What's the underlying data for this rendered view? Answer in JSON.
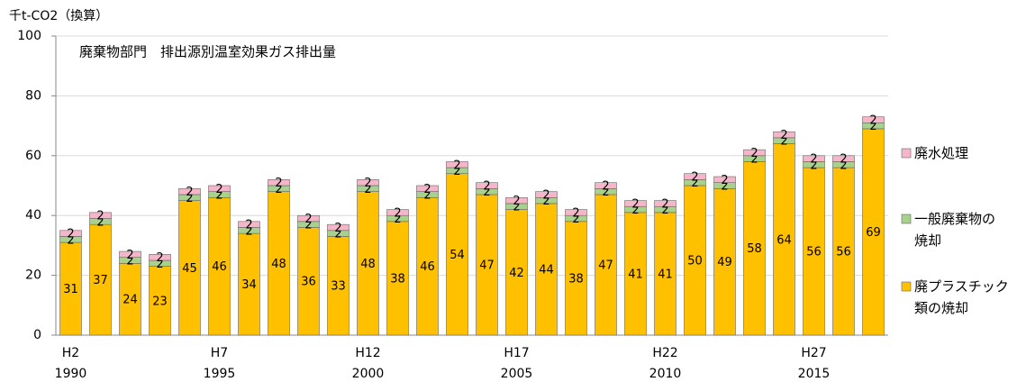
{
  "chart_data": {
    "type": "stacked_bar",
    "title": "廃棄物部門　排出源別温室効果ガス排出量",
    "y_axis_label": "千t-CO2（換算）",
    "categories": [
      [
        "H2",
        "1990"
      ],
      null,
      null,
      null,
      null,
      [
        "H7",
        "1995"
      ],
      null,
      null,
      null,
      null,
      [
        "H12",
        "2000"
      ],
      null,
      null,
      null,
      null,
      [
        "H17",
        "2005"
      ],
      null,
      null,
      null,
      null,
      [
        "H22",
        "2010"
      ],
      null,
      null,
      null,
      null,
      [
        "H27",
        "2015"
      ],
      null,
      null
    ],
    "series": [
      {
        "name": "廃プラスチック\n類の焼却",
        "color": "#ffc000",
        "values": [
          31,
          37,
          24,
          23,
          45,
          46,
          34,
          48,
          36,
          33,
          48,
          38,
          46,
          54,
          47,
          42,
          44,
          38,
          47,
          41,
          41,
          50,
          49,
          58,
          64,
          56,
          56,
          69
        ]
      },
      {
        "name": "一般廃棄物の\n焼却",
        "color": "#a9d18e",
        "values": [
          2,
          2,
          2,
          2,
          2,
          2,
          2,
          2,
          2,
          2,
          2,
          2,
          2,
          2,
          2,
          2,
          2,
          2,
          2,
          2,
          2,
          2,
          2,
          2,
          2,
          2,
          2,
          2
        ]
      },
      {
        "name": "廃水処理",
        "color": "#f4b6c8",
        "values": [
          2,
          2,
          2,
          2,
          2,
          2,
          2,
          2,
          2,
          2,
          2,
          2,
          2,
          2,
          2,
          2,
          2,
          2,
          2,
          2,
          2,
          2,
          2,
          2,
          2,
          2,
          2,
          2
        ]
      }
    ],
    "ylim": [
      0,
      100
    ],
    "yticks": [
      0,
      20,
      40,
      60,
      80,
      100
    ],
    "grid": true
  }
}
